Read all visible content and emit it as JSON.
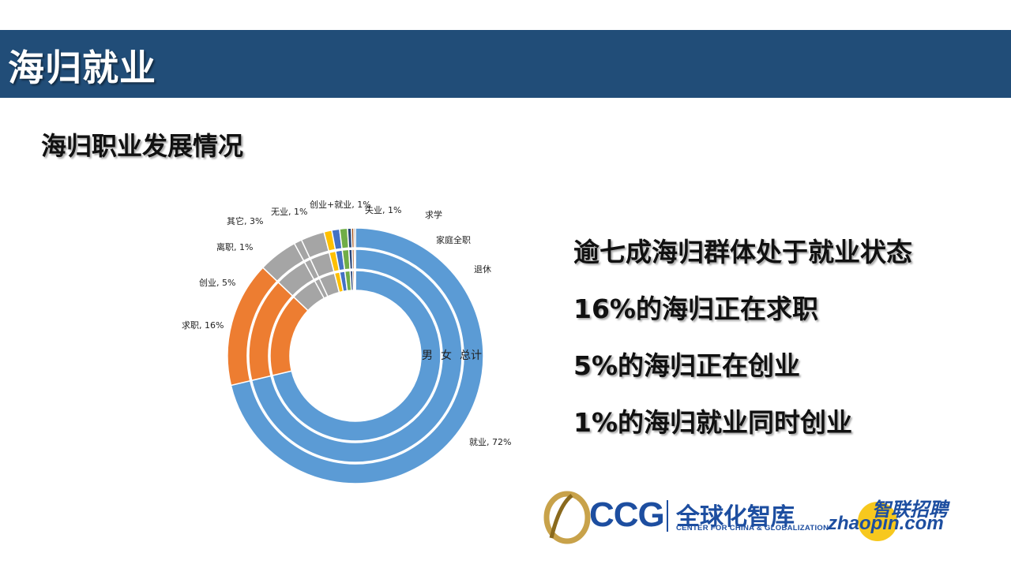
{
  "header": {
    "title": "海归就业"
  },
  "subtitle": "海归职业发展情况",
  "chart_data": {
    "type": "donut",
    "rings": [
      "男",
      "女",
      "总计"
    ],
    "categories": [
      "就业",
      "求职",
      "创业",
      "离职",
      "其它",
      "无业",
      "创业+就业",
      "失业",
      "求学",
      "家庭全职",
      "退休"
    ],
    "data_labels": [
      "就业, 72%",
      "求职, 16%",
      "创业, 5%",
      "离职, 1%",
      "其它, 3%",
      "无业, 1%",
      "创业+就业, 1%",
      "失业, 1%",
      "求学",
      "家庭全职",
      "退休"
    ],
    "series": [
      {
        "name": "男",
        "values": [
          72,
          16,
          5,
          1,
          3,
          1,
          1,
          1,
          0.5,
          0.3,
          0.2
        ]
      },
      {
        "name": "女",
        "values": [
          72,
          16,
          5,
          1,
          3,
          1,
          1,
          1,
          0.5,
          0.3,
          0.2
        ]
      },
      {
        "name": "总计",
        "values": [
          72,
          16,
          5,
          1,
          3,
          1,
          1,
          1,
          0.5,
          0.3,
          0.2
        ]
      }
    ],
    "colors": [
      "#5b9bd5",
      "#ed7d31",
      "#a5a5a5",
      "#a5a5a5",
      "#a5a5a5",
      "#ffc000",
      "#4472c4",
      "#70ad47",
      "#264478",
      "#9e480e",
      "#636363"
    ]
  },
  "bullets": [
    "逾七成海归群体处于就业状态",
    "16%的海归正在求职",
    "5%的海归正在创业",
    "1%的海归就业同时创业"
  ],
  "logos": {
    "ccg_text": "CCG",
    "ccg_cn": "全球化智库",
    "ccg_en": "CENTER FOR CHINA & GLOBALIZATION",
    "zhaopin_cn": "智联招聘",
    "zhaopin_en": "zhaopin.com"
  }
}
